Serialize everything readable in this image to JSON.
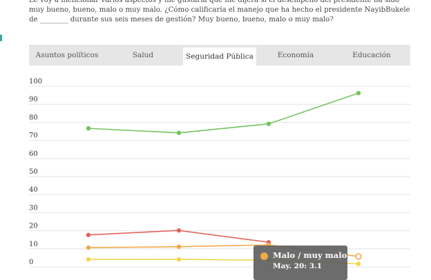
{
  "question": {
    "text": "Le voy a mencionar varios aspectos y me gustaría que me dijera si el desempeño del presidente ha sido muy bueno, bueno, malo o muy malo.  ¿Cómo calificaría el manejo que ha hecho el presidente NayibBukele de ________ durante sus seis meses de gestión? Muy bueno, bueno, malo o muy malo?"
  },
  "tabs": [
    {
      "label": "Asuntos políticos",
      "active": false
    },
    {
      "label": "Salud",
      "active": false
    },
    {
      "label": "Seguridad Pública",
      "active": true
    },
    {
      "label": "Economía",
      "active": false
    },
    {
      "label": "Educación",
      "active": false
    }
  ],
  "tooltip": {
    "series": "Malo / muy malo",
    "value_text": "May. 20: 3.1",
    "color": "#f2a94a"
  },
  "chart_data": {
    "type": "line",
    "ylim": [
      0,
      100
    ],
    "yticks": [
      0,
      10,
      20,
      30,
      40,
      50,
      60,
      70,
      80,
      90,
      100
    ],
    "series": [
      {
        "key": "green",
        "color": "#72c45c",
        "values": [
          74,
          71.5,
          76.5,
          93.5
        ]
      },
      {
        "key": "red",
        "color": "#e0655c",
        "values": [
          15,
          17.5,
          11,
          null
        ]
      },
      {
        "key": "orange",
        "name": "Malo / muy malo",
        "color": "#f2a94a",
        "values": [
          8,
          8.5,
          9.5,
          3.1
        ]
      },
      {
        "key": "yellow",
        "color": "#f2d64a",
        "values": [
          1.5,
          1.5,
          1,
          -1
        ]
      }
    ]
  }
}
